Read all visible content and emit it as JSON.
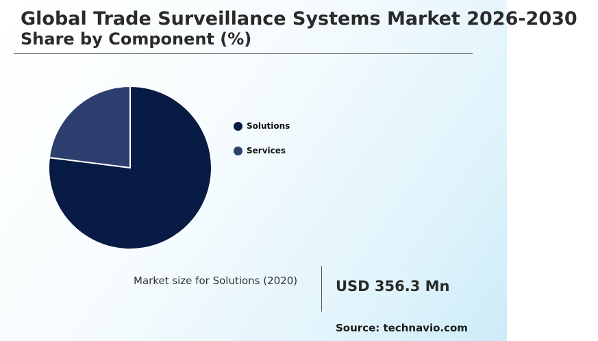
{
  "chart_data": {
    "type": "pie",
    "title": "Global Trade Surveillance Systems Market 2026-2030",
    "subtitle": "Share by Component (%)",
    "categories": [
      "Solutions",
      "Services"
    ],
    "values": [
      77,
      23
    ],
    "colors": [
      "#071b45",
      "#2c3e6e"
    ],
    "legend_position": "right"
  },
  "stat": {
    "label": "Market size for Solutions (2020)",
    "value": "USD 356.3 Mn"
  },
  "source": "Source: technavio.com"
}
